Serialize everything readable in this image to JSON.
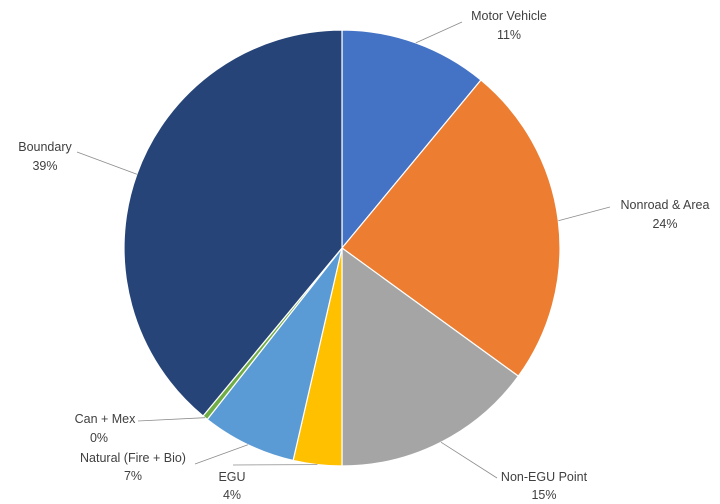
{
  "chart_data": {
    "type": "pie",
    "title": "",
    "slices": [
      {
        "label": "Motor Vehicle",
        "pct_label": "11%",
        "value": 11,
        "color": "#4472C4"
      },
      {
        "label": "Nonroad & Area",
        "pct_label": "24%",
        "value": 24,
        "color": "#ED7D31"
      },
      {
        "label": "Non-EGU Point",
        "pct_label": "15%",
        "value": 15,
        "color": "#A5A5A5"
      },
      {
        "label": "EGU",
        "pct_label": "4%",
        "value": 3.6,
        "color": "#FFC000"
      },
      {
        "label": "Natural (Fire + Bio)",
        "pct_label": "7%",
        "value": 7,
        "color": "#5B9BD5"
      },
      {
        "label": "Can + Mex",
        "pct_label": "0%",
        "value": 0.4,
        "color": "#70AD47"
      },
      {
        "label": "Boundary",
        "pct_label": "39%",
        "value": 39,
        "color": "#264478"
      }
    ],
    "legend": "none",
    "data_labels": "outside with leader lines"
  }
}
